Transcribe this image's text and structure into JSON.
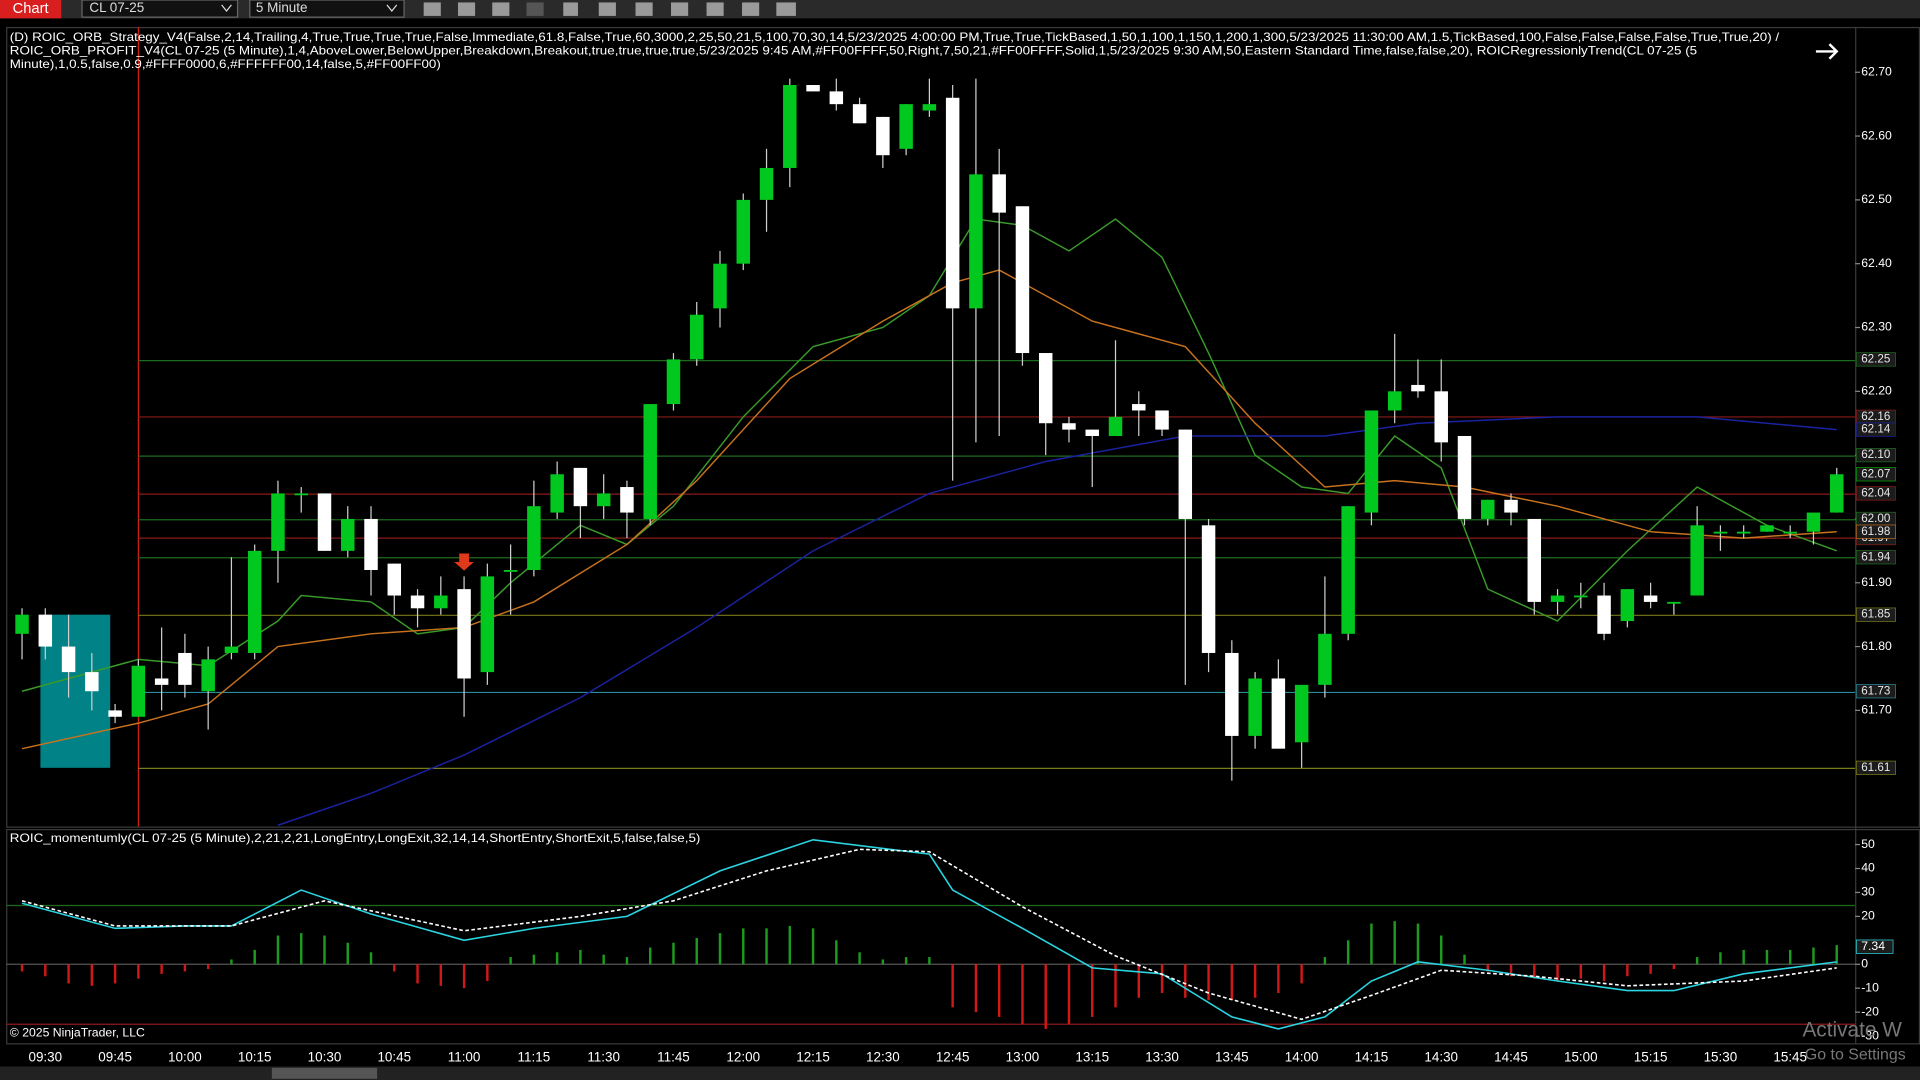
{
  "header": {
    "app": "Chart",
    "instrument": "CL 07-25",
    "interval": "5 Minute"
  },
  "footer": "© 2025 NinjaTrader, LLC",
  "watermark": [
    "Activate W",
    "Go to Settings"
  ],
  "chart_data": [
    {
      "type": "candlestick",
      "annotations": [
        "(D) ROIC_ORB_Strategy_V4(False,2,14,Trailing,4,True,True,True,True,False,Immediate,61.8,False,True,60,3000,2,25,50,21,5,100,70,30,14,5/23/2025 4:00:00 PM,True,True,TickBased,1,50,1,100,1,150,1,200,1,300,5/23/2025 11:30:00 AM,1.5,TickBased,100,False,False,False,False,True,True,20) /",
        "ROIC_ORB_PROFIT_V4(CL 07-25 (5 Minute),1,4,AboveLower,BelowUpper,Breakdown,Breakout,true,true,true,true,5/23/2025 9:45 AM,#FF00FFFF,50,Right,7,50,21,#FF00FFFF,Solid,1,5/23/2025 9:30 AM,50,Eastern Standard Time,false,false,20), ROICRegressionlyTrend(CL 07-25 (5",
        "Minute),1,0.5,false,0.9,#FFFF0000,6,#FFFFFF00,14,false,5,#FF00FF00)"
      ],
      "categories": [
        null,
        "09:30",
        null,
        null,
        "09:45",
        null,
        null,
        "10:00",
        null,
        null,
        "10:15",
        null,
        null,
        "10:30",
        null,
        null,
        "10:45",
        null,
        null,
        "11:00",
        null,
        null,
        "11:15",
        null,
        null,
        "11:30",
        null,
        null,
        "11:45",
        null,
        null,
        "12:00",
        null,
        null,
        "12:15",
        null,
        null,
        "12:30",
        null,
        null,
        "12:45",
        null,
        null,
        "13:00",
        null,
        null,
        "13:15",
        null,
        null,
        "13:30",
        null,
        null,
        "13:45",
        null,
        null,
        "14:00",
        null,
        null,
        "14:15",
        null,
        null,
        "14:30",
        null,
        null,
        "14:45",
        null,
        null,
        "15:00",
        null,
        null,
        "15:15",
        null,
        null,
        "15:30",
        null,
        null,
        "15:45",
        null,
        null
      ],
      "open": [
        61.82,
        61.85,
        61.8,
        61.76,
        61.7,
        61.69,
        61.75,
        61.79,
        61.73,
        61.79,
        61.79,
        61.95,
        62.04,
        62.04,
        61.95,
        62.0,
        61.93,
        61.88,
        61.86,
        61.89,
        61.76,
        61.92,
        61.92,
        62.01,
        62.08,
        62.02,
        62.05,
        62.0,
        62.18,
        62.25,
        62.33,
        62.4,
        62.5,
        62.55,
        62.68,
        62.67,
        62.65,
        62.63,
        62.58,
        62.64,
        62.66,
        62.33,
        62.54,
        62.49,
        62.26,
        62.15,
        62.14,
        62.13,
        62.18,
        62.17,
        62.14,
        61.99,
        61.79,
        61.66,
        61.75,
        61.65,
        61.74,
        61.82,
        62.01,
        62.17,
        62.21,
        62.2,
        62.13,
        62.0,
        62.03,
        62.0,
        61.87,
        61.88,
        61.88,
        61.84,
        61.88,
        61.87,
        61.88,
        61.98,
        61.98,
        61.98,
        61.98,
        61.98,
        62.01
      ],
      "high": [
        61.86,
        61.86,
        61.85,
        61.79,
        61.71,
        61.78,
        61.83,
        61.82,
        61.8,
        61.94,
        61.96,
        62.06,
        62.05,
        62.04,
        62.02,
        62.02,
        61.93,
        61.89,
        61.91,
        61.91,
        61.93,
        61.96,
        62.06,
        62.09,
        62.08,
        62.07,
        62.06,
        62.18,
        62.26,
        62.34,
        62.42,
        62.51,
        62.58,
        62.69,
        62.68,
        62.69,
        62.66,
        62.63,
        62.65,
        62.69,
        62.68,
        62.69,
        62.58,
        62.49,
        62.26,
        62.16,
        62.14,
        62.28,
        62.2,
        62.17,
        62.14,
        62.0,
        61.81,
        61.76,
        61.78,
        61.74,
        61.91,
        62.02,
        62.17,
        62.29,
        62.25,
        62.25,
        62.13,
        62.03,
        62.04,
        62.0,
        61.89,
        61.9,
        61.9,
        61.89,
        61.9,
        61.87,
        62.02,
        61.99,
        61.99,
        61.99,
        61.99,
        62.01,
        62.08
      ],
      "low": [
        61.78,
        61.78,
        61.72,
        61.7,
        61.68,
        61.69,
        61.7,
        61.72,
        61.67,
        61.78,
        61.78,
        61.9,
        62.01,
        61.95,
        61.94,
        61.88,
        61.85,
        61.83,
        61.85,
        61.69,
        61.74,
        61.85,
        61.91,
        62.0,
        61.97,
        62.0,
        61.97,
        61.99,
        62.17,
        62.24,
        62.3,
        62.39,
        62.45,
        62.52,
        62.67,
        62.64,
        62.62,
        62.55,
        62.57,
        62.63,
        62.06,
        62.12,
        62.13,
        62.24,
        62.1,
        62.12,
        62.05,
        62.13,
        62.13,
        62.13,
        61.74,
        61.76,
        61.59,
        61.64,
        61.64,
        61.61,
        61.72,
        61.81,
        61.99,
        62.15,
        62.19,
        62.09,
        61.99,
        61.99,
        61.99,
        61.85,
        61.85,
        61.86,
        61.81,
        61.83,
        61.86,
        61.85,
        61.88,
        61.95,
        61.97,
        61.98,
        61.97,
        61.96,
        62.01
      ],
      "close": [
        61.85,
        61.8,
        61.76,
        61.73,
        61.69,
        61.77,
        61.74,
        61.74,
        61.78,
        61.8,
        61.95,
        62.04,
        62.04,
        61.95,
        62.0,
        61.92,
        61.88,
        61.86,
        61.88,
        61.75,
        61.91,
        61.92,
        62.02,
        62.07,
        62.02,
        62.04,
        62.01,
        62.18,
        62.25,
        62.32,
        62.4,
        62.5,
        62.55,
        62.68,
        62.67,
        62.65,
        62.62,
        62.57,
        62.65,
        62.65,
        62.33,
        62.54,
        62.48,
        62.26,
        62.15,
        62.14,
        62.13,
        62.16,
        62.17,
        62.14,
        62.0,
        61.79,
        61.66,
        61.75,
        61.64,
        61.74,
        61.82,
        62.02,
        62.17,
        62.2,
        62.2,
        62.12,
        62.0,
        62.03,
        62.01,
        61.87,
        61.88,
        61.88,
        61.82,
        61.89,
        61.87,
        61.87,
        61.99,
        61.98,
        61.98,
        61.99,
        61.98,
        62.01,
        62.07
      ],
      "up_color": "#00c81e",
      "down_color": "#ffffff",
      "overlays": [
        {
          "color": "#3a9a2a",
          "x": [
            0,
            5,
            8,
            11,
            12,
            15,
            17,
            19,
            21,
            24,
            26,
            28,
            31,
            34,
            37,
            39,
            41,
            43,
            45,
            47,
            49,
            51,
            53,
            55,
            57,
            59,
            61,
            63,
            66,
            69,
            72,
            75,
            78
          ],
          "values": [
            61.73,
            61.78,
            61.77,
            61.84,
            61.88,
            61.87,
            61.82,
            61.83,
            61.9,
            61.99,
            61.96,
            62.02,
            62.16,
            62.27,
            62.3,
            62.35,
            62.47,
            62.46,
            62.42,
            62.47,
            62.41,
            62.26,
            62.1,
            62.05,
            62.04,
            62.13,
            62.08,
            61.89,
            61.84,
            61.95,
            62.05,
            61.99,
            61.95
          ]
        },
        {
          "color": "#c8721e",
          "x": [
            0,
            5,
            8,
            11,
            15,
            19,
            22,
            26,
            29,
            33,
            37,
            40,
            42,
            46,
            50,
            53,
            56,
            59,
            62,
            66,
            70,
            74,
            78
          ],
          "values": [
            61.64,
            61.68,
            61.71,
            61.8,
            61.82,
            61.83,
            61.87,
            61.96,
            62.06,
            62.22,
            62.31,
            62.37,
            62.39,
            62.31,
            62.27,
            62.15,
            62.05,
            62.06,
            62.05,
            62.02,
            61.98,
            61.97,
            61.98
          ]
        },
        {
          "color": "#1a22a0",
          "x": [
            11,
            15,
            19,
            24,
            29,
            34,
            39,
            44,
            50,
            56,
            60,
            66,
            72,
            78
          ],
          "values": [
            61.52,
            61.57,
            61.63,
            61.72,
            61.83,
            61.95,
            62.04,
            62.09,
            62.13,
            62.13,
            62.15,
            62.16,
            62.16,
            62.14
          ]
        }
      ],
      "levels": [
        {
          "value": 62.25,
          "color": "#1e6b1e"
        },
        {
          "value": 62.16,
          "color": "#8b1a1a"
        },
        {
          "value": 62.1,
          "label": "62.10",
          "color": "#1e6b1e"
        },
        {
          "value": 62.04,
          "color": "#8b1a1a"
        },
        {
          "value": 62,
          "label": "62.00",
          "color": "#1e6b1e"
        },
        {
          "value": 61.97,
          "color": "#8b1a1a"
        },
        {
          "value": 61.94,
          "color": "#1e6b1e"
        },
        {
          "value": 61.85,
          "color": "#7a7a1a"
        },
        {
          "value": 61.73,
          "color": "#2a8a9a"
        },
        {
          "value": 61.61,
          "color": "#7a7a1a"
        }
      ],
      "price_markers": [
        {
          "value": 62.14,
          "color": "#1a22a0"
        },
        {
          "value": 62.07,
          "color": "#00a000"
        },
        {
          "value": 61.98,
          "color": "#b86a20"
        }
      ],
      "orb_color": "#00d8e0",
      "ylim": [
        61.518,
        62.771
      ],
      "yticks": [
        {
          "value": 62.7,
          "label": "62.70"
        },
        {
          "value": 62.6,
          "label": "62.60"
        },
        {
          "value": 62.5,
          "label": "62.50"
        },
        {
          "value": 62.4,
          "label": "62.40"
        },
        {
          "value": 62.3,
          "label": "62.30"
        },
        {
          "value": 62.2,
          "label": "62.20"
        },
        {
          "value": 62.1,
          "label": "62.10"
        },
        {
          "value": 62,
          "label": "62.00"
        },
        {
          "value": 61.9,
          "label": "61.90"
        },
        {
          "value": 61.8,
          "label": "61.80"
        },
        {
          "value": 61.7,
          "label": "61.70"
        }
      ]
    },
    {
      "type": "bar",
      "title": "ROIC_momentumly(CL 07-25 (5 Minute),2,21,2,21,LongEntry,LongExit,32,14,14,ShortEntry,ShortExit,5,false,false,5)",
      "values": [
        -3,
        -5,
        -8,
        -9,
        -8,
        -6,
        -4,
        -3,
        -2,
        2,
        6,
        12,
        13,
        12,
        9,
        5,
        -3,
        -8,
        -9,
        -10,
        -7,
        3,
        4,
        5,
        6,
        4,
        3,
        7,
        9,
        11,
        13,
        15,
        15,
        16,
        15,
        10,
        5,
        2,
        3,
        3,
        -18,
        -20,
        -22,
        -25,
        -27,
        -25,
        -22,
        -18,
        -14,
        -12,
        -14,
        -15,
        -15,
        -14,
        -12,
        -8,
        3,
        10,
        17,
        18,
        17,
        12,
        4,
        -3,
        -5,
        -6,
        -7,
        -6,
        -7,
        -5,
        -4,
        -2,
        3,
        5,
        6,
        6,
        6,
        7,
        8
      ],
      "up_color": "#1e9a1e",
      "down_color": "#d01818",
      "lines": [
        {
          "color": "#2ad4e0",
          "dashed": false,
          "x": [
            0,
            4,
            7,
            9,
            12,
            15,
            19,
            22,
            26,
            30,
            34,
            39,
            40,
            43,
            46,
            49,
            52,
            54,
            56,
            58,
            60,
            63,
            66,
            69,
            71,
            74,
            78
          ],
          "values": [
            25.5,
            15,
            16,
            16,
            31,
            21,
            10,
            15,
            20,
            39,
            52,
            46,
            31,
            15,
            -1.5,
            -4,
            -22,
            -27,
            -22,
            -7,
            1,
            -2.5,
            -7,
            -11,
            -11,
            -4,
            1
          ]
        },
        {
          "color": "#ffffff",
          "dashed": true,
          "x": [
            0,
            4,
            9,
            13,
            19,
            24,
            28,
            32,
            36,
            39,
            43,
            47,
            51,
            55,
            58,
            61,
            65,
            69,
            74,
            78
          ],
          "values": [
            26.5,
            16,
            16,
            26.5,
            14,
            20,
            26.5,
            39,
            48,
            47,
            24,
            3.5,
            -12,
            -23,
            -13,
            -2.5,
            -5,
            -9,
            -7,
            -1.5
          ]
        }
      ],
      "levels": [
        {
          "value": 25,
          "color": "#1e6b1e"
        },
        {
          "value": -25,
          "color": "#8b1a1a"
        }
      ],
      "current": {
        "value": 7.34
      },
      "ylim": [
        -33,
        56
      ],
      "yticks": [
        50,
        40,
        30,
        20,
        0,
        -10,
        -20,
        -30
      ]
    }
  ]
}
